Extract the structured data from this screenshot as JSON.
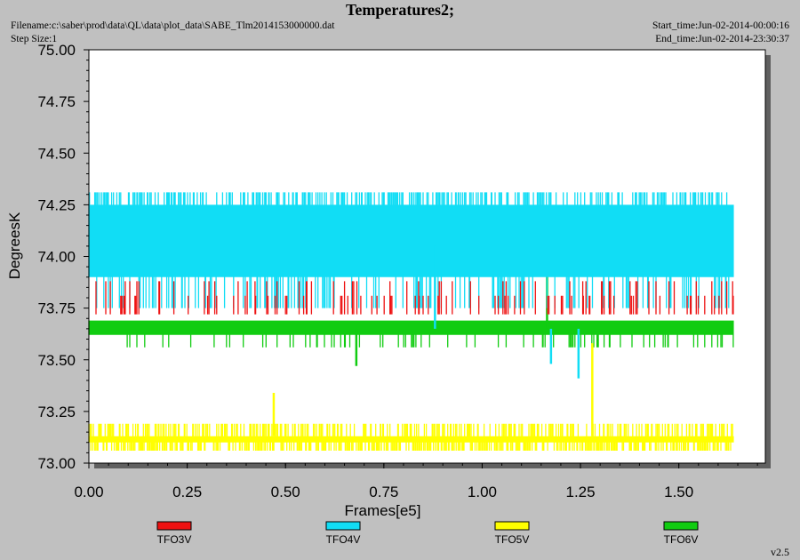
{
  "header": {
    "filename": "Filename:c:\\saber\\prod\\data\\QL\\data\\plot_data\\SABE_Tlm2014153000000.dat",
    "step_size": "Step Size:1",
    "start_time": "Start_time:Jun-02-2014-00:00:16",
    "end_time": "End_time:Jun-02-2014-23:30:37"
  },
  "version": "v2.5",
  "chart_data": {
    "type": "line",
    "title": "Temperatures2;",
    "xlabel": "Frames[e5]",
    "ylabel": "DegreesK",
    "xlim": [
      0.0,
      1.72
    ],
    "ylim": [
      73.0,
      75.0
    ],
    "x_ticks": [
      "0.00",
      "0.25",
      "0.50",
      "0.75",
      "1.00",
      "1.25",
      "1.50"
    ],
    "y_ticks": [
      "73.00",
      "73.25",
      "73.50",
      "73.75",
      "74.00",
      "74.25",
      "74.50",
      "74.75",
      "75.00"
    ],
    "grid": false,
    "legend_position": "bottom",
    "background": "#ffffff",
    "series": [
      {
        "name": "TFO3V",
        "color": "#ee1111",
        "x_range": [
          0.0,
          1.64
        ],
        "values": [
          73.75,
          73.81,
          73.88
        ]
      },
      {
        "name": "TFO4V",
        "color": "#11ddf5",
        "x_range": [
          0.0,
          1.64
        ],
        "values": [
          73.94,
          74.0,
          74.06,
          74.13,
          74.19,
          74.25,
          74.31
        ],
        "outliers": [
          {
            "x": 1.175,
            "y": 73.48
          },
          {
            "x": 1.245,
            "y": 73.41
          },
          {
            "x": 0.88,
            "y": 74.05
          }
        ]
      },
      {
        "name": "TFO5V",
        "color": "#ffff00",
        "x_range": [
          0.0,
          1.64
        ],
        "values": [
          73.06,
          73.13,
          73.19
        ],
        "outliers": [
          {
            "x": 0.47,
            "y": 73.34
          },
          {
            "x": 1.28,
            "y": 73.58
          }
        ]
      },
      {
        "name": "TFO6V",
        "color": "#11cc11",
        "x_range": [
          0.0,
          1.64
        ],
        "values": [
          73.56,
          73.63,
          73.69
        ],
        "outliers": [
          {
            "x": 1.165,
            "y": 74.11
          },
          {
            "x": 0.68,
            "y": 73.47
          }
        ]
      }
    ]
  }
}
